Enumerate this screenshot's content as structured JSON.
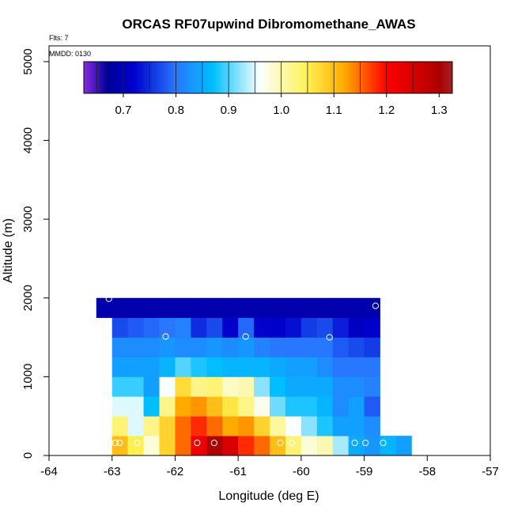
{
  "chart_data": {
    "type": "heatmap",
    "title": "ORCAS RF07upwind Dibromomethane_AWAS",
    "note_flights": "Flts: 7",
    "note_date": "MMDD: 0130",
    "xlabel": "Longitude (deg E)",
    "ylabel": "Altitude (m)",
    "xlim": [
      -64,
      -57
    ],
    "ylim": [
      0,
      5200
    ],
    "x_ticks": [
      -64,
      -63,
      -62,
      -61,
      -60,
      -59,
      -58,
      -57
    ],
    "x_tick_labels": [
      "-64",
      "-63",
      "-62",
      "-61",
      "-60",
      "-59",
      "-58",
      "-57"
    ],
    "y_ticks": [
      0,
      1000,
      2000,
      3000,
      4000,
      5000
    ],
    "y_tick_labels": [
      "0",
      "1000",
      "2000",
      "3000",
      "4000",
      "5000"
    ],
    "colorbar": {
      "min": 0.625,
      "max": 1.325,
      "ticks": [
        0.7,
        0.8,
        0.9,
        1.0,
        1.1,
        1.2,
        1.3
      ],
      "tick_labels": [
        "0.7",
        "0.8",
        "0.9",
        "1.0",
        "1.1",
        "1.2",
        "1.3"
      ]
    },
    "grid": {
      "x0": -63.0,
      "dx": 0.25,
      "dy": 250,
      "rows": [
        {
          "y0": 0,
          "x0": -63.0,
          "values": [
            1.1,
            1.05,
            0.98,
            1.08,
            1.15,
            1.22,
            1.3,
            1.25,
            1.18,
            1.15,
            1.1,
            1.03,
            0.98,
            1.0,
            0.93,
            0.85,
            0.83,
            0.86,
            0.84
          ]
        },
        {
          "y0": 250,
          "x0": -63.0,
          "values": [
            1.03,
            0.95,
            1.02,
            1.08,
            1.15,
            1.18,
            1.15,
            1.12,
            1.13,
            1.08,
            1.01,
            0.96,
            0.92,
            0.88,
            0.84,
            0.84,
            0.82
          ]
        },
        {
          "y0": 500,
          "x0": -63.0,
          "values": [
            0.95,
            0.95,
            0.87,
            1.02,
            1.12,
            1.13,
            1.1,
            1.06,
            1.02,
            0.97,
            0.91,
            0.88,
            0.88,
            0.86,
            0.82,
            0.84,
            0.78
          ]
        },
        {
          "y0": 750,
          "x0": -63.0,
          "values": [
            0.89,
            0.89,
            0.84,
            0.96,
            1.07,
            1.02,
            1.03,
            0.99,
            1.0,
            0.92,
            0.87,
            0.85,
            0.85,
            0.85,
            0.82,
            0.82,
            0.81
          ]
        },
        {
          "y0": 1000,
          "x0": -63.0,
          "values": [
            0.84,
            0.84,
            0.84,
            0.86,
            0.9,
            0.88,
            0.87,
            0.86,
            0.86,
            0.86,
            0.85,
            0.84,
            0.84,
            0.82,
            0.8,
            0.8,
            0.8
          ]
        },
        {
          "y0": 1250,
          "x0": -63.0,
          "values": [
            0.82,
            0.82,
            0.82,
            0.83,
            0.82,
            0.82,
            0.83,
            0.82,
            0.83,
            0.81,
            0.8,
            0.8,
            0.8,
            0.8,
            0.78,
            0.77,
            0.76
          ]
        },
        {
          "y0": 1500,
          "x0": -63.0,
          "values": [
            0.77,
            0.78,
            0.79,
            0.8,
            0.81,
            0.75,
            0.77,
            0.72,
            0.79,
            0.72,
            0.72,
            0.73,
            0.76,
            0.77,
            0.74,
            0.71,
            0.72
          ]
        },
        {
          "y0": 1750,
          "x0": -63.25,
          "values": [
            0.69,
            0.69,
            0.69,
            0.69,
            0.69,
            0.69,
            0.69,
            0.69,
            0.69,
            0.69,
            0.69,
            0.69,
            0.69,
            0.69,
            0.69,
            0.69,
            0.69,
            0.69
          ]
        }
      ]
    },
    "samples": [
      {
        "lon": -62.95,
        "alt": 160
      },
      {
        "lon": -62.88,
        "alt": 160
      },
      {
        "lon": -62.6,
        "alt": 160
      },
      {
        "lon": -61.65,
        "alt": 160
      },
      {
        "lon": -61.38,
        "alt": 160
      },
      {
        "lon": -60.33,
        "alt": 160
      },
      {
        "lon": -60.15,
        "alt": 160
      },
      {
        "lon": -59.15,
        "alt": 160
      },
      {
        "lon": -58.98,
        "alt": 160
      },
      {
        "lon": -58.7,
        "alt": 160
      },
      {
        "lon": -62.15,
        "alt": 1510
      },
      {
        "lon": -60.88,
        "alt": 1510
      },
      {
        "lon": -59.55,
        "alt": 1500
      },
      {
        "lon": -63.05,
        "alt": 1990
      },
      {
        "lon": -58.82,
        "alt": 1900
      }
    ]
  }
}
